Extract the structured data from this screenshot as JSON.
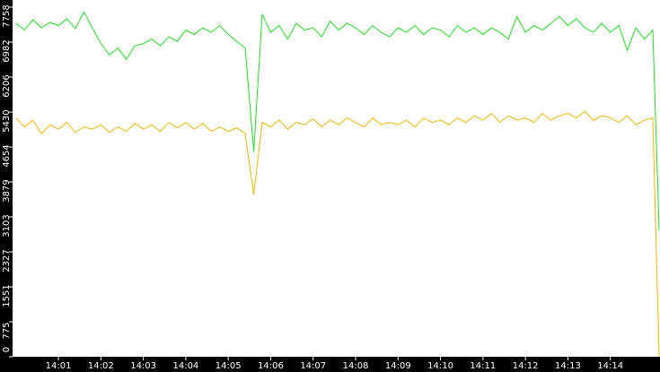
{
  "chart_data": {
    "type": "line",
    "x": [
      840,
      840.2,
      840.4,
      840.6,
      840.8,
      841,
      841.2,
      841.4,
      841.6,
      841.8,
      842,
      842.2,
      842.4,
      842.6,
      842.8,
      843,
      843.2,
      843.4,
      843.6,
      843.8,
      844,
      844.2,
      844.4,
      844.6,
      844.8,
      845,
      845.2,
      845.4,
      845.6,
      845.8,
      846,
      846.2,
      846.4,
      846.6,
      846.8,
      847,
      847.2,
      847.4,
      847.6,
      847.8,
      848,
      848.2,
      848.4,
      848.6,
      848.8,
      849,
      849.2,
      849.4,
      849.6,
      849.8,
      850,
      850.2,
      850.4,
      850.6,
      850.8,
      851,
      851.2,
      851.4,
      851.6,
      851.8,
      852,
      852.2,
      852.4,
      852.6,
      852.8,
      853,
      853.2,
      853.4,
      853.6,
      853.8,
      854,
      854.2,
      854.4,
      854.6,
      854.8,
      855,
      855.15
    ],
    "series": [
      {
        "color": "#22dd22",
        "values": [
          7400,
          7250,
          7480,
          7300,
          7420,
          7350,
          7500,
          7280,
          7650,
          7300,
          6950,
          6700,
          6850,
          6600,
          6900,
          6950,
          7050,
          6900,
          7100,
          7000,
          7250,
          7150,
          7300,
          7200,
          7350,
          7150,
          7000,
          6850,
          4550,
          7600,
          7200,
          7350,
          7050,
          7400,
          7250,
          7300,
          7100,
          7450,
          7250,
          7400,
          7300,
          7150,
          7350,
          7200,
          7100,
          7300,
          7200,
          7350,
          7150,
          7300,
          7250,
          7100,
          7350,
          7200,
          7300,
          7150,
          7300,
          7200,
          7050,
          7550,
          7200,
          7350,
          7250,
          7400,
          7550,
          7350,
          7500,
          7300,
          7200,
          7400,
          7200,
          7350,
          6800,
          7300,
          7050,
          7250,
          2800
        ]
      },
      {
        "color": "#f0b400",
        "values": [
          5300,
          5100,
          5250,
          4950,
          5150,
          5050,
          5200,
          4980,
          5100,
          5050,
          5150,
          4980,
          5100,
          5000,
          5180,
          5050,
          5150,
          5000,
          5200,
          5080,
          5200,
          5050,
          5180,
          5000,
          5100,
          5000,
          5080,
          4950,
          3600,
          5200,
          5100,
          5250,
          5050,
          5200,
          5150,
          5280,
          5100,
          5250,
          5150,
          5300,
          5200,
          5100,
          5300,
          5150,
          5200,
          5150,
          5250,
          5100,
          5300,
          5200,
          5250,
          5150,
          5300,
          5200,
          5350,
          5250,
          5400,
          5200,
          5350,
          5250,
          5300,
          5200,
          5400,
          5250,
          5350,
          5400,
          5300,
          5450,
          5250,
          5350,
          5300,
          5200,
          5350,
          5150,
          5250,
          5300,
          0
        ]
      }
    ],
    "xlim": [
      839.92,
      855.17
    ],
    "xticks": [
      {
        "value": 841,
        "label": "14:01"
      },
      {
        "value": 842,
        "label": "14:02"
      },
      {
        "value": 843,
        "label": "14:03"
      },
      {
        "value": 844,
        "label": "14:04"
      },
      {
        "value": 845,
        "label": "14:05"
      },
      {
        "value": 846,
        "label": "14:06"
      },
      {
        "value": 847,
        "label": "14:07"
      },
      {
        "value": 848,
        "label": "14:08"
      },
      {
        "value": 849,
        "label": "14:09"
      },
      {
        "value": 850,
        "label": "14:10"
      },
      {
        "value": 851,
        "label": "14:11"
      },
      {
        "value": 852,
        "label": "14:12"
      },
      {
        "value": 853,
        "label": "14:13"
      },
      {
        "value": 854,
        "label": "14:14"
      }
    ],
    "ylim": [
      0,
      7758
    ],
    "yticks": [
      0,
      775,
      1551,
      2327,
      3103,
      3879,
      4654,
      5430,
      6206,
      6982,
      7758
    ]
  }
}
